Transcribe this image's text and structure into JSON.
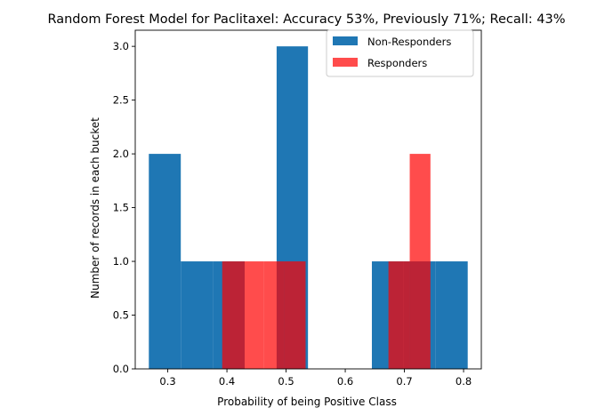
{
  "chart_data": {
    "type": "histogram",
    "title": "Random Forest Model for Paclitaxel: Accuracy 53%, Previously 71%; Recall: 43%",
    "xlabel": "Probability of being Positive Class",
    "ylabel": "Number of records in each bucket",
    "xlim": [
      0.245,
      0.83
    ],
    "ylim": [
      0,
      3.15
    ],
    "xticks": [
      "0.3",
      "0.4",
      "0.5",
      "0.6",
      "0.7",
      "0.8"
    ],
    "yticks": [
      "0.0",
      "0.5",
      "1.0",
      "1.5",
      "2.0",
      "2.5",
      "3.0"
    ],
    "legend_position": "upper right",
    "series": [
      {
        "name": "Non-Responders",
        "color": "#1f77b4",
        "opacity": 1.0,
        "bins": [
          {
            "x0": 0.268,
            "x1": 0.322,
            "count": 2
          },
          {
            "x0": 0.322,
            "x1": 0.376,
            "count": 1
          },
          {
            "x0": 0.376,
            "x1": 0.43,
            "count": 1
          },
          {
            "x0": 0.43,
            "x1": 0.484,
            "count": 0
          },
          {
            "x0": 0.484,
            "x1": 0.537,
            "count": 3
          },
          {
            "x0": 0.537,
            "x1": 0.591,
            "count": 0
          },
          {
            "x0": 0.591,
            "x1": 0.645,
            "count": 0
          },
          {
            "x0": 0.645,
            "x1": 0.699,
            "count": 1
          },
          {
            "x0": 0.699,
            "x1": 0.753,
            "count": 1
          },
          {
            "x0": 0.753,
            "x1": 0.807,
            "count": 1
          }
        ]
      },
      {
        "name": "Responders",
        "color": "#ff0000",
        "opacity": 0.7,
        "bins": [
          {
            "x0": 0.392,
            "x1": 0.427,
            "count": 1
          },
          {
            "x0": 0.427,
            "x1": 0.462,
            "count": 1
          },
          {
            "x0": 0.462,
            "x1": 0.497,
            "count": 1
          },
          {
            "x0": 0.497,
            "x1": 0.533,
            "count": 1
          },
          {
            "x0": 0.533,
            "x1": 0.568,
            "count": 0
          },
          {
            "x0": 0.568,
            "x1": 0.603,
            "count": 0
          },
          {
            "x0": 0.603,
            "x1": 0.638,
            "count": 0
          },
          {
            "x0": 0.638,
            "x1": 0.673,
            "count": 0
          },
          {
            "x0": 0.673,
            "x1": 0.709,
            "count": 1
          },
          {
            "x0": 0.709,
            "x1": 0.744,
            "count": 2
          }
        ]
      }
    ]
  }
}
